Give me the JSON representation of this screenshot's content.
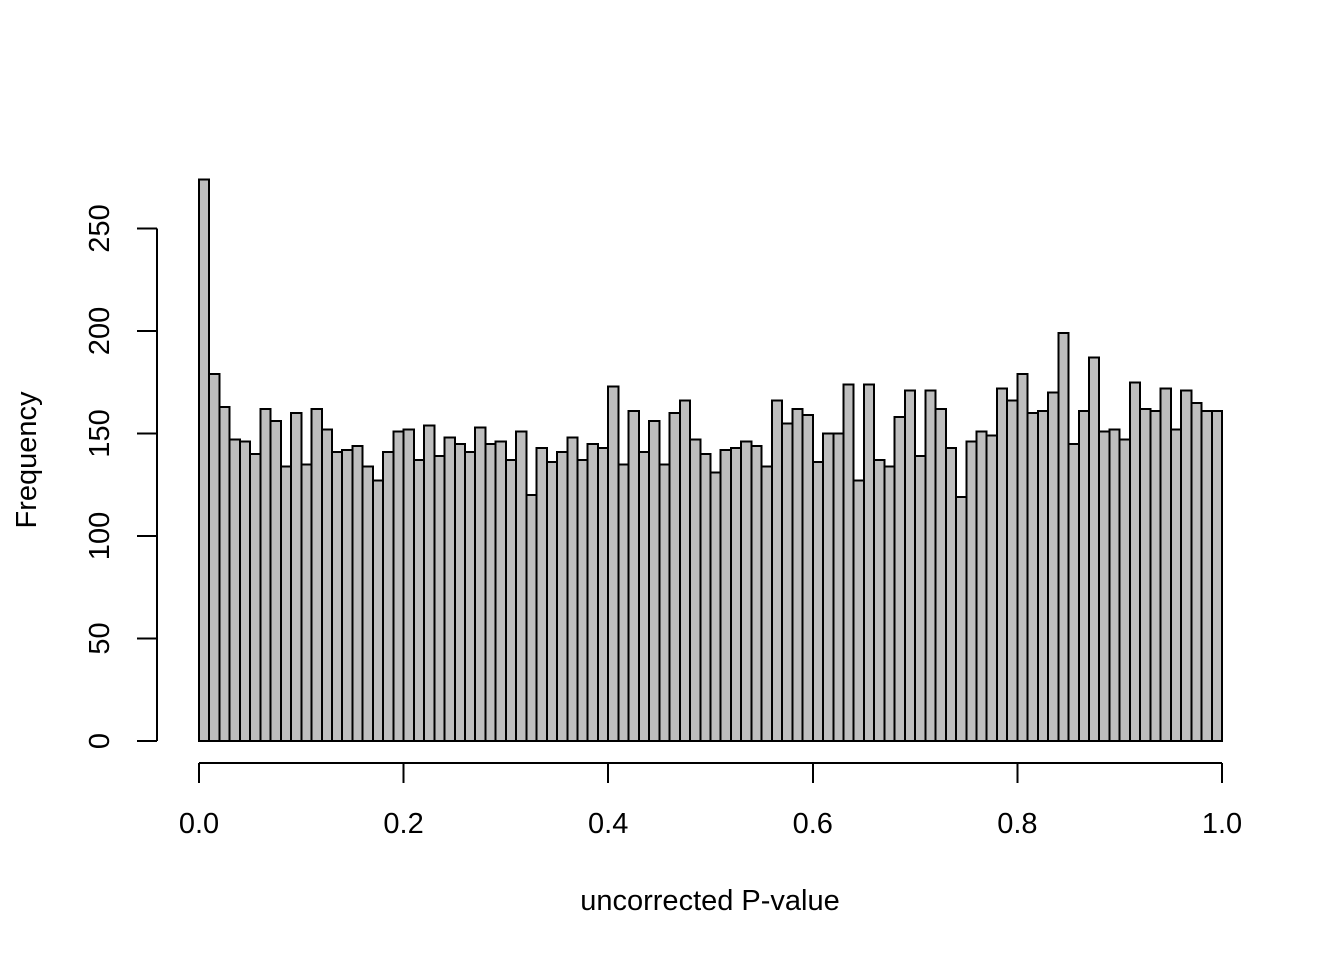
{
  "chart_data": {
    "type": "bar",
    "subtype": "histogram",
    "title": "",
    "xlabel": "uncorrected P-value",
    "ylabel": "Frequency",
    "xlim": [
      0,
      1
    ],
    "ylim": [
      0,
      275
    ],
    "bin_width": 0.01,
    "x_ticks": [
      0.0,
      0.2,
      0.4,
      0.6,
      0.8,
      1.0
    ],
    "x_tick_labels": [
      "0.0",
      "0.2",
      "0.4",
      "0.6",
      "0.8",
      "1.0"
    ],
    "y_ticks": [
      0,
      50,
      100,
      150,
      200,
      250
    ],
    "y_tick_labels": [
      "0",
      "50",
      "100",
      "150",
      "200",
      "250"
    ],
    "grid": false,
    "legend": "none",
    "bar_color": "#bebebe",
    "edge_color": "#000000",
    "values": [
      274,
      179,
      163,
      147,
      146,
      140,
      162,
      156,
      134,
      160,
      135,
      162,
      152,
      141,
      142,
      144,
      134,
      127,
      141,
      151,
      152,
      137,
      154,
      139,
      148,
      145,
      141,
      153,
      145,
      146,
      137,
      151,
      120,
      143,
      136,
      141,
      148,
      137,
      145,
      143,
      173,
      135,
      161,
      141,
      156,
      135,
      160,
      166,
      147,
      140,
      131,
      142,
      143,
      146,
      144,
      134,
      166,
      155,
      162,
      159,
      136,
      150,
      150,
      174,
      127,
      174,
      137,
      134,
      158,
      171,
      139,
      171,
      162,
      143,
      119,
      146,
      151,
      149,
      172,
      166,
      179,
      160,
      161,
      170,
      199,
      145,
      161,
      187,
      151,
      152,
      147,
      175,
      162,
      161,
      172,
      152,
      171,
      165,
      161,
      161
    ]
  }
}
